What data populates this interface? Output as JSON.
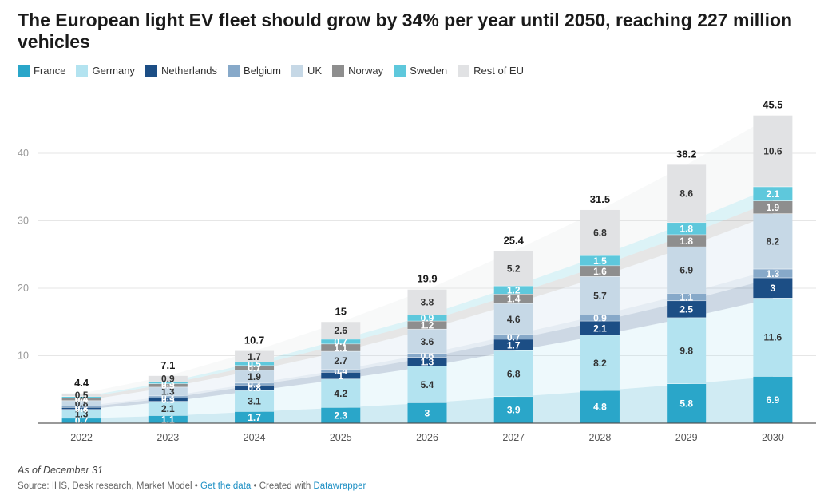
{
  "title": "The European light EV fleet should grow by 34% per year until 2050, reaching 227 million vehicles",
  "note": "As of December 31",
  "source": {
    "prefix": "Source: IHS, Desk research, Market Model • ",
    "data_link": "Get the data",
    "middle": " • Created with ",
    "tool_link": "Datawrapper"
  },
  "chart_data": {
    "type": "bar",
    "stacked": true,
    "categories": [
      "2022",
      "2023",
      "2024",
      "2025",
      "2026",
      "2027",
      "2028",
      "2029",
      "2030"
    ],
    "totals": [
      "4.4",
      "7.1",
      "10.7",
      "15",
      "19.9",
      "25.4",
      "31.5",
      "38.2",
      "45.5"
    ],
    "series": [
      {
        "name": "France",
        "color": "#2aa6c9",
        "text_color": "#ffffff",
        "values": [
          0.7,
          1.1,
          1.7,
          2.3,
          3,
          3.9,
          4.8,
          5.8,
          6.9
        ]
      },
      {
        "name": "Germany",
        "color": "#b3e3f0",
        "text_color": "#333333",
        "values": [
          1.3,
          2.1,
          3.1,
          4.2,
          5.4,
          6.8,
          8.2,
          9.8,
          11.6
        ]
      },
      {
        "name": "Netherlands",
        "color": "#1c4e85",
        "text_color": "#ffffff",
        "values": [
          0.3,
          0.5,
          0.8,
          1,
          1.3,
          1.7,
          2.1,
          2.5,
          3
        ]
      },
      {
        "name": "Belgium",
        "color": "#87a9c9",
        "text_color": "#ffffff",
        "values": [
          0.2,
          0.3,
          0.3,
          0.4,
          0.6,
          0.7,
          0.9,
          1.1,
          1.3
        ]
      },
      {
        "name": "UK",
        "color": "#c6d8e6",
        "text_color": "#333333",
        "values": [
          0.8,
          1.3,
          1.9,
          2.7,
          3.6,
          4.6,
          5.7,
          6.9,
          8.2
        ]
      },
      {
        "name": "Norway",
        "color": "#8e8e8e",
        "text_color": "#ffffff",
        "values": [
          0.4,
          0.5,
          0.7,
          1.1,
          1.2,
          1.4,
          1.6,
          1.8,
          1.9
        ]
      },
      {
        "name": "Sweden",
        "color": "#5ec8dc",
        "text_color": "#ffffff",
        "values": [
          0.2,
          0.3,
          0.5,
          0.7,
          0.9,
          1.2,
          1.5,
          1.8,
          2.1
        ]
      },
      {
        "name": "Rest of EU",
        "color": "#e1e2e4",
        "text_color": "#333333",
        "values": [
          0.5,
          0.9,
          1.7,
          2.6,
          3.8,
          5.2,
          6.8,
          8.6,
          10.6
        ]
      }
    ],
    "yticks": [
      10,
      20,
      30,
      40
    ],
    "ylim": [
      0,
      46
    ],
    "grid": true,
    "legend_position": "top-left"
  }
}
